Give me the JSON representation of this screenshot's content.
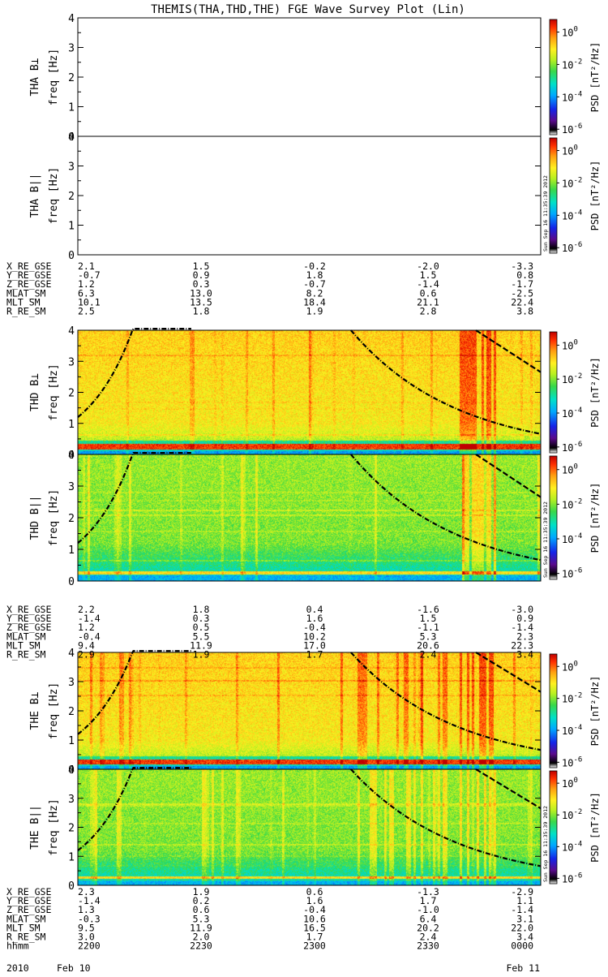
{
  "title": "THEMIS(THA,THD,THE) FGE Wave Survey Plot (Lin)",
  "colorbar": {
    "label": "PSD [nT²/Hz]",
    "ticks": [
      {
        "base": "10",
        "exp": "0"
      },
      {
        "base": "10",
        "exp": "-2"
      },
      {
        "base": "10",
        "exp": "-4"
      },
      {
        "base": "10",
        "exp": "-6"
      }
    ]
  },
  "stamp": "Sun Sep 16 11:35:39 2012",
  "chart_data": [
    {
      "type": "heatmap",
      "probe": "THA",
      "component": "B⊥",
      "ylabel_probe": "THA B⊥",
      "ylabel_unit": "freq [Hz]",
      "ylim": [
        0,
        4
      ],
      "yticks": [
        "0",
        "1",
        "2",
        "3",
        "4"
      ],
      "has_data": false
    },
    {
      "type": "heatmap",
      "probe": "THA",
      "component": "B||",
      "ylabel_probe": "THA B||",
      "ylabel_unit": "freq [Hz]",
      "ylim": [
        0,
        4
      ],
      "yticks": [
        "0",
        "1",
        "2",
        "3",
        "4"
      ],
      "has_data": false
    },
    {
      "type": "heatmap",
      "probe": "THD",
      "component": "B⊥",
      "ylabel_probe": "THD B⊥",
      "ylabel_unit": "freq [Hz]",
      "ylim": [
        0,
        4
      ],
      "yticks": [
        "0",
        "1",
        "2",
        "3",
        "4"
      ],
      "has_data": true
    },
    {
      "type": "heatmap",
      "probe": "THD",
      "component": "B||",
      "ylabel_probe": "THD B||",
      "ylabel_unit": "freq [Hz]",
      "ylim": [
        0,
        4
      ],
      "yticks": [
        "0",
        "1",
        "2",
        "3",
        "4"
      ],
      "has_data": true
    },
    {
      "type": "heatmap",
      "probe": "THE",
      "component": "B⊥",
      "ylabel_probe": "THE B⊥",
      "ylabel_unit": "freq [Hz]",
      "ylim": [
        0,
        4
      ],
      "yticks": [
        "0",
        "1",
        "2",
        "3",
        "4"
      ],
      "has_data": true
    },
    {
      "type": "heatmap",
      "probe": "THE",
      "component": "B||",
      "ylabel_probe": "THE B||",
      "ylabel_unit": "freq [Hz]",
      "ylim": [
        0,
        4
      ],
      "yticks": [
        "0",
        "1",
        "2",
        "3",
        "4"
      ],
      "has_data": true
    }
  ],
  "ephemeris": [
    {
      "rows": [
        {
          "label": "X_RE_GSE",
          "values": [
            "2.1",
            "1.5",
            "-0.2",
            "-2.0",
            "-3.3"
          ]
        },
        {
          "label": "Y_RE_GSE",
          "values": [
            "-0.7",
            "0.9",
            "1.8",
            "1.5",
            "0.8"
          ]
        },
        {
          "label": "Z_RE_GSE",
          "values": [
            "1.2",
            "0.3",
            "-0.7",
            "-1.4",
            "-1.7"
          ]
        },
        {
          "label": "MLAT_SM",
          "values": [
            "6.3",
            "13.0",
            "8.2",
            "0.6",
            "-2.5"
          ]
        },
        {
          "label": "MLT_SM",
          "values": [
            "10.1",
            "13.5",
            "18.4",
            "21.1",
            "22.4"
          ]
        },
        {
          "label": "R_RE_SM",
          "values": [
            "2.5",
            "1.8",
            "1.9",
            "2.8",
            "3.8"
          ]
        }
      ]
    },
    {
      "rows": [
        {
          "label": "X_RE_GSE",
          "values": [
            "2.2",
            "1.8",
            "0.4",
            "-1.6",
            "-3.0"
          ]
        },
        {
          "label": "Y_RE_GSE",
          "values": [
            "-1.4",
            "0.3",
            "1.6",
            "1.5",
            "0.9"
          ]
        },
        {
          "label": "Z_RE_GSE",
          "values": [
            "1.2",
            "0.5",
            "-0.4",
            "-1.1",
            "-1.4"
          ]
        },
        {
          "label": "MLAT_SM",
          "values": [
            "-0.4",
            "5.5",
            "10.2",
            "5.3",
            "2.3"
          ]
        },
        {
          "label": "MLT_SM",
          "values": [
            "9.4",
            "11.9",
            "17.0",
            "20.6",
            "22.3"
          ]
        },
        {
          "label": "R_RE_SM",
          "values": [
            "2.9",
            "1.9",
            "1.7",
            "2.4",
            "3.4"
          ]
        }
      ]
    },
    {
      "rows": [
        {
          "label": "X_RE_GSE",
          "values": [
            "2.3",
            "1.9",
            "0.6",
            "-1.3",
            "-2.9"
          ]
        },
        {
          "label": "Y_RE_GSE",
          "values": [
            "-1.4",
            "0.2",
            "1.6",
            "1.7",
            "1.1"
          ]
        },
        {
          "label": "Z_RE_GSE",
          "values": [
            "1.3",
            "0.6",
            "-0.4",
            "-1.0",
            "-1.4"
          ]
        },
        {
          "label": "MLAT_SM",
          "values": [
            "-0.3",
            "5.3",
            "10.6",
            "6.4",
            "3.1"
          ]
        },
        {
          "label": "MLT_SM",
          "values": [
            "9.5",
            "11.9",
            "16.5",
            "20.2",
            "22.0"
          ]
        },
        {
          "label": "R_RE_SM",
          "values": [
            "3.0",
            "2.0",
            "1.7",
            "2.4",
            "3.4"
          ]
        },
        {
          "label": "hhmm",
          "values": [
            "2200",
            "2230",
            "2300",
            "2330",
            "0000"
          ]
        }
      ]
    }
  ],
  "date_row": {
    "year": "2010",
    "start": "Feb 10",
    "end": "Feb 11"
  }
}
